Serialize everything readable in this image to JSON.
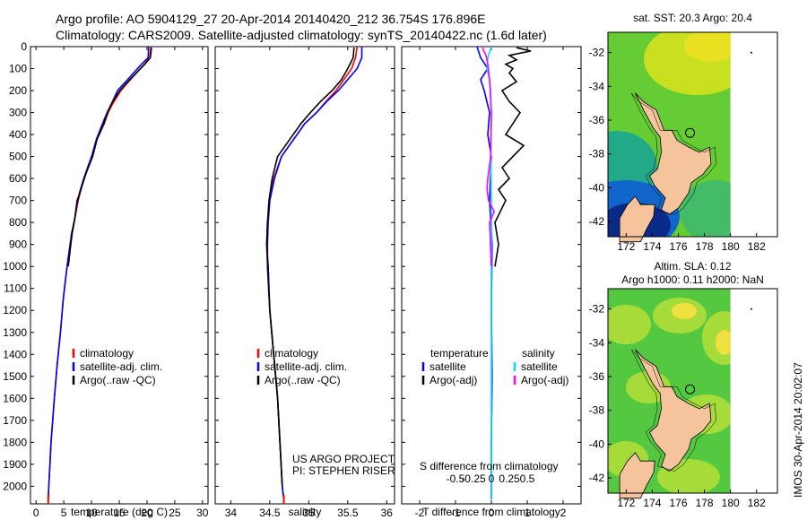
{
  "header": {
    "line1": "Argo profile: AO 5904129_27 20-Apr-2014 20140420_212 36.754S 176.896E",
    "line2": "Climatology: CARS2009. Satellite-adjusted climatology: synTS_20140422.nc (1.6d later)"
  },
  "colors": {
    "climatology": "#ff0000",
    "satellite": "#0000ff",
    "argo": "#000000",
    "cyan": "#00e0ff",
    "magenta": "#ff00ff",
    "land": "#f5c49c"
  },
  "chart_data": [
    {
      "type": "line",
      "name": "temperature-profile",
      "xlabel": "temperature (deg C)",
      "xlim": [
        -1,
        31
      ],
      "ylim": [
        2080,
        0
      ],
      "xticks": [
        0,
        5,
        10,
        15,
        20,
        25,
        30
      ],
      "yticks": [
        0,
        100,
        200,
        300,
        400,
        500,
        600,
        700,
        800,
        900,
        1000,
        1100,
        1200,
        1300,
        1400,
        1500,
        1600,
        1700,
        1800,
        1900,
        2000
      ],
      "y_reversed": true,
      "legend": [
        "climatology",
        "satellite-adj. clim.",
        "Argo(..raw -QC)"
      ],
      "series": [
        {
          "name": "climatology",
          "color": "#ff0000",
          "x": [
            20.7,
            20.5,
            19.5,
            17.0,
            15.3,
            13.8,
            13.0,
            12.3,
            11.0,
            10.1,
            9.3,
            8.7,
            8.1,
            7.6,
            7.0,
            6.5,
            5.6,
            4.9,
            4.4,
            3.8,
            3.3,
            3.0,
            2.7,
            2.5,
            2.3,
            2.2
          ],
          "y": [
            0,
            50,
            80,
            150,
            200,
            260,
            300,
            350,
            420,
            500,
            550,
            600,
            650,
            700,
            780,
            850,
            1000,
            1150,
            1300,
            1450,
            1600,
            1700,
            1800,
            1900,
            2000,
            2060
          ]
        },
        {
          "name": "satellite-adj. clim.",
          "color": "#0000ff",
          "x": [
            20.3,
            20.2,
            19.0,
            16.5,
            14.7,
            13.6,
            12.8,
            12.0,
            10.9,
            10.0,
            9.3,
            8.6,
            8.0,
            7.5,
            7.0,
            6.4,
            5.6,
            4.9,
            4.4,
            3.8,
            3.3,
            3.0,
            2.7,
            2.5,
            2.3,
            2.2
          ],
          "y": [
            0,
            50,
            80,
            150,
            200,
            260,
            300,
            350,
            420,
            500,
            550,
            600,
            650,
            700,
            780,
            850,
            1000,
            1150,
            1300,
            1450,
            1600,
            1700,
            1800,
            1900,
            2000,
            2060
          ]
        },
        {
          "name": "Argo(..raw -QC)",
          "color": "#000000",
          "x": [
            20.8,
            20.6,
            19.6,
            16.9,
            15.1,
            13.6,
            12.9,
            12.2,
            11.0,
            10.2,
            9.4,
            8.7,
            8.1,
            7.4,
            7.0,
            6.5,
            5.8
          ],
          "y": [
            5,
            50,
            80,
            150,
            200,
            260,
            300,
            350,
            420,
            500,
            550,
            600,
            650,
            700,
            780,
            850,
            1000
          ]
        }
      ]
    },
    {
      "type": "line",
      "name": "salinity-profile",
      "xlabel": "salinity",
      "xlim": [
        33.8,
        36.1
      ],
      "ylim": [
        2080,
        0
      ],
      "xticks": [
        34,
        34.5,
        35,
        35.5,
        36
      ],
      "y_reversed": true,
      "legend": [
        "climatology",
        "satellite-adj. clim.",
        "Argo(..raw -QC)"
      ],
      "annotation": [
        "US ARGO PROJECT",
        "PI: STEPHEN RISER"
      ],
      "series": [
        {
          "name": "climatology",
          "color": "#ff0000",
          "x": [
            35.62,
            35.6,
            35.55,
            35.45,
            35.35,
            35.22,
            35.1,
            34.95,
            34.85,
            34.75,
            34.65,
            34.55,
            34.5,
            34.47,
            34.46,
            34.47,
            34.5,
            34.55,
            34.6,
            34.63,
            34.66,
            34.68
          ],
          "y": [
            0,
            50,
            100,
            150,
            200,
            250,
            300,
            350,
            400,
            450,
            500,
            600,
            700,
            800,
            900,
            1000,
            1200,
            1400,
            1600,
            1800,
            2000,
            2060
          ]
        },
        {
          "name": "satellite-adj. clim.",
          "color": "#0000ff",
          "x": [
            35.68,
            35.68,
            35.62,
            35.5,
            35.38,
            35.23,
            35.1,
            34.95,
            34.85,
            34.75,
            34.65,
            34.56,
            34.5,
            34.48,
            34.47,
            34.47,
            34.5,
            34.55,
            34.6,
            34.63,
            34.66,
            34.68
          ],
          "y": [
            0,
            50,
            100,
            150,
            200,
            250,
            300,
            350,
            400,
            450,
            500,
            600,
            700,
            800,
            900,
            1000,
            1200,
            1400,
            1600,
            1800,
            2000,
            2060
          ]
        },
        {
          "name": "Argo(..raw -QC)",
          "color": "#000000",
          "x": [
            35.58,
            35.57,
            35.5,
            35.42,
            35.3,
            35.15,
            35.02,
            34.9,
            34.8,
            34.7,
            34.6,
            34.53,
            34.49,
            34.47,
            34.46,
            34.48,
            34.5,
            34.55,
            34.6,
            34.63,
            34.66
          ],
          "y": [
            5,
            50,
            100,
            150,
            200,
            250,
            300,
            350,
            400,
            450,
            500,
            600,
            700,
            800,
            900,
            1000,
            1200,
            1400,
            1600,
            1800,
            2000
          ]
        }
      ]
    },
    {
      "type": "line",
      "name": "difference-profile",
      "xlabel": "T difference from climatology",
      "x2label": "S difference from climatology",
      "xlim": [
        -2.5,
        2.5
      ],
      "xticks": [
        -2,
        -1,
        0,
        1,
        2
      ],
      "x2ticks": [
        "-0.5",
        "-0.25",
        "0",
        "0.25",
        "0.5"
      ],
      "y_reversed": true,
      "legend_titles": [
        "temperature",
        "salinity"
      ],
      "legend": [
        "satellite",
        "Argo(-adj)",
        "satellite",
        "Argo(-adj)"
      ],
      "series": [
        {
          "name": "temperature satellite",
          "color": "#0000ff",
          "x": [
            -0.4,
            -0.3,
            -0.1,
            -0.3,
            -0.2,
            -0.05,
            -0.1,
            0,
            -0.05,
            0.02,
            0,
            0.02,
            0,
            0
          ],
          "y": [
            0,
            50,
            100,
            150,
            200,
            300,
            400,
            500,
            700,
            900,
            1200,
            1500,
            1800,
            2060
          ]
        },
        {
          "name": "temperature Argo(-adj)",
          "color": "#000000",
          "x": [
            0.7,
            1.1,
            0.5,
            0.7,
            0.4,
            0.6,
            0.5,
            0.7,
            0.3,
            0.5,
            0.8,
            0.6,
            0.4,
            0.9,
            0.6,
            0.3,
            0.5,
            0.2,
            0.4,
            0.1,
            0.2,
            0.1
          ],
          "y": [
            5,
            20,
            40,
            60,
            80,
            100,
            120,
            160,
            200,
            250,
            300,
            350,
            400,
            450,
            500,
            550,
            600,
            650,
            700,
            800,
            900,
            1000
          ]
        },
        {
          "name": "salinity satellite",
          "color": "#00e0ff",
          "x": [
            0,
            -0.1,
            -0.12,
            -0.05,
            -0.02,
            0,
            -0.01,
            0,
            0,
            0
          ],
          "y": [
            0,
            50,
            100,
            150,
            200,
            300,
            500,
            800,
            1400,
            2060
          ]
        },
        {
          "name": "salinity Argo(-adj)",
          "color": "#ff00ff",
          "x": [
            -0.25,
            -0.15,
            -0.1,
            -0.05,
            0,
            -0.02,
            -0.1,
            -0.12,
            -0.08,
            0.08,
            -0.05,
            0
          ],
          "y": [
            5,
            40,
            80,
            150,
            300,
            500,
            600,
            650,
            700,
            750,
            800,
            1000
          ]
        }
      ]
    }
  ],
  "maps": [
    {
      "title": "sat. SST: 20.3 Argo: 20.4",
      "xticks": [
        "172",
        "174",
        "176",
        "178",
        "180",
        "182"
      ],
      "yticks": [
        "-32",
        "-34",
        "-36",
        "-38",
        "-40",
        "-42"
      ]
    },
    {
      "title1": "Altim. SLA: 0.12",
      "title2": "Argo h1000: 0.11 h2000: NaN",
      "xticks": [
        "172",
        "174",
        "176",
        "178",
        "180",
        "182"
      ],
      "yticks": [
        "-32",
        "-34",
        "-36",
        "-38",
        "-40",
        "-42"
      ]
    }
  ],
  "footer_rotated": "IMOS 30-Apr-2014 20:02:07"
}
